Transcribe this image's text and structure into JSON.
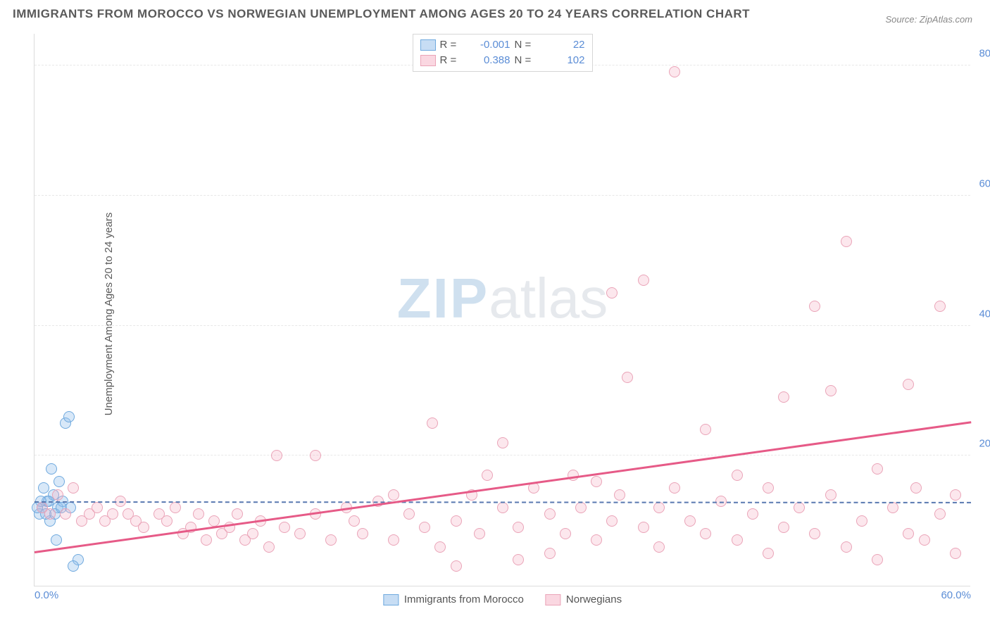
{
  "title": "IMMIGRANTS FROM MOROCCO VS NORWEGIAN UNEMPLOYMENT AMONG AGES 20 TO 24 YEARS CORRELATION CHART",
  "source": "Source: ZipAtlas.com",
  "ylabel": "Unemployment Among Ages 20 to 24 years",
  "watermark_zip": "ZIP",
  "watermark_atlas": "atlas",
  "chart": {
    "type": "scatter",
    "xlim": [
      0,
      60
    ],
    "ylim": [
      0,
      85
    ],
    "yticks": [
      {
        "v": 20,
        "label": "20.0%"
      },
      {
        "v": 40,
        "label": "40.0%"
      },
      {
        "v": 60,
        "label": "60.0%"
      },
      {
        "v": 80,
        "label": "80.0%"
      }
    ],
    "xticks": [
      {
        "v": 0,
        "label": "0.0%",
        "pos": "left"
      },
      {
        "v": 60,
        "label": "60.0%",
        "pos": "right"
      }
    ],
    "background_color": "#ffffff",
    "grid_color": "#e8e8e8",
    "axis_color": "#dcdcdc",
    "tick_color": "#5b8dd6",
    "series": [
      {
        "name": "Immigrants from Morocco",
        "key": "blue",
        "marker_fill": "rgba(143,188,234,0.35)",
        "marker_stroke": "#6fa9de",
        "marker_size": 16,
        "R": "-0.001",
        "N": "22",
        "trend": {
          "style": "dashed",
          "color": "#5878b0",
          "y_start": 12.8,
          "y_end": 12.7
        },
        "points": [
          [
            0.3,
            11
          ],
          [
            0.5,
            12
          ],
          [
            0.8,
            13
          ],
          [
            1.0,
            10
          ],
          [
            1.2,
            14
          ],
          [
            0.6,
            15
          ],
          [
            1.1,
            18
          ],
          [
            1.5,
            12
          ],
          [
            1.3,
            11
          ],
          [
            0.9,
            13
          ],
          [
            1.8,
            13
          ],
          [
            1.6,
            16
          ],
          [
            2.0,
            25
          ],
          [
            2.2,
            26
          ],
          [
            1.4,
            7
          ],
          [
            2.8,
            4
          ],
          [
            2.5,
            3
          ],
          [
            0.4,
            13
          ],
          [
            0.7,
            11
          ],
          [
            1.7,
            12
          ],
          [
            2.3,
            12
          ],
          [
            0.2,
            12
          ]
        ]
      },
      {
        "name": "Norwegians",
        "key": "pink",
        "marker_fill": "rgba(245,175,195,0.3)",
        "marker_stroke": "#eaa4b8",
        "marker_size": 16,
        "R": "0.388",
        "N": "102",
        "trend": {
          "style": "solid",
          "color": "#e65a87",
          "y_start": 5,
          "y_end": 25
        },
        "points": [
          [
            0.5,
            12
          ],
          [
            1,
            11
          ],
          [
            1.5,
            14
          ],
          [
            2,
            11
          ],
          [
            2.5,
            15
          ],
          [
            3,
            10
          ],
          [
            3.5,
            11
          ],
          [
            4,
            12
          ],
          [
            4.5,
            10
          ],
          [
            5,
            11
          ],
          [
            5.5,
            13
          ],
          [
            6,
            11
          ],
          [
            6.5,
            10
          ],
          [
            7,
            9
          ],
          [
            8,
            11
          ],
          [
            8.5,
            10
          ],
          [
            9,
            12
          ],
          [
            9.5,
            8
          ],
          [
            10,
            9
          ],
          [
            10.5,
            11
          ],
          [
            11,
            7
          ],
          [
            11.5,
            10
          ],
          [
            12,
            8
          ],
          [
            12.5,
            9
          ],
          [
            13,
            11
          ],
          [
            13.5,
            7
          ],
          [
            14,
            8
          ],
          [
            14.5,
            10
          ],
          [
            15,
            6
          ],
          [
            15.5,
            20
          ],
          [
            16,
            9
          ],
          [
            17,
            8
          ],
          [
            18,
            11
          ],
          [
            18,
            20
          ],
          [
            19,
            7
          ],
          [
            20,
            12
          ],
          [
            20.5,
            10
          ],
          [
            21,
            8
          ],
          [
            22,
            13
          ],
          [
            23,
            7
          ],
          [
            23,
            14
          ],
          [
            24,
            11
          ],
          [
            25,
            9
          ],
          [
            25.5,
            25
          ],
          [
            26,
            6
          ],
          [
            27,
            10
          ],
          [
            27,
            3
          ],
          [
            28,
            14
          ],
          [
            28.5,
            8
          ],
          [
            29,
            17
          ],
          [
            30,
            12
          ],
          [
            30,
            22
          ],
          [
            31,
            9
          ],
          [
            31,
            4
          ],
          [
            32,
            15
          ],
          [
            33,
            11
          ],
          [
            33,
            5
          ],
          [
            34,
            8
          ],
          [
            34.5,
            17
          ],
          [
            35,
            12
          ],
          [
            36,
            7
          ],
          [
            36,
            16
          ],
          [
            37,
            10
          ],
          [
            37,
            45
          ],
          [
            37.5,
            14
          ],
          [
            38,
            32
          ],
          [
            39,
            9
          ],
          [
            39,
            47
          ],
          [
            40,
            12
          ],
          [
            40,
            6
          ],
          [
            41,
            15
          ],
          [
            41,
            79
          ],
          [
            42,
            10
          ],
          [
            43,
            8
          ],
          [
            43,
            24
          ],
          [
            44,
            13
          ],
          [
            45,
            7
          ],
          [
            45,
            17
          ],
          [
            46,
            11
          ],
          [
            47,
            5
          ],
          [
            47,
            15
          ],
          [
            48,
            9
          ],
          [
            48,
            29
          ],
          [
            49,
            12
          ],
          [
            50,
            8
          ],
          [
            50,
            43
          ],
          [
            51,
            14
          ],
          [
            51,
            30
          ],
          [
            52,
            6
          ],
          [
            52,
            53
          ],
          [
            53,
            10
          ],
          [
            54,
            18
          ],
          [
            54,
            4
          ],
          [
            55,
            12
          ],
          [
            56,
            8
          ],
          [
            56,
            31
          ],
          [
            56.5,
            15
          ],
          [
            57,
            7
          ],
          [
            58,
            43
          ],
          [
            58,
            11
          ],
          [
            59,
            5
          ],
          [
            59,
            14
          ]
        ]
      }
    ],
    "legend_bottom": [
      {
        "key": "blue",
        "label": "Immigrants from Morocco"
      },
      {
        "key": "pink",
        "label": "Norwegians"
      }
    ]
  }
}
